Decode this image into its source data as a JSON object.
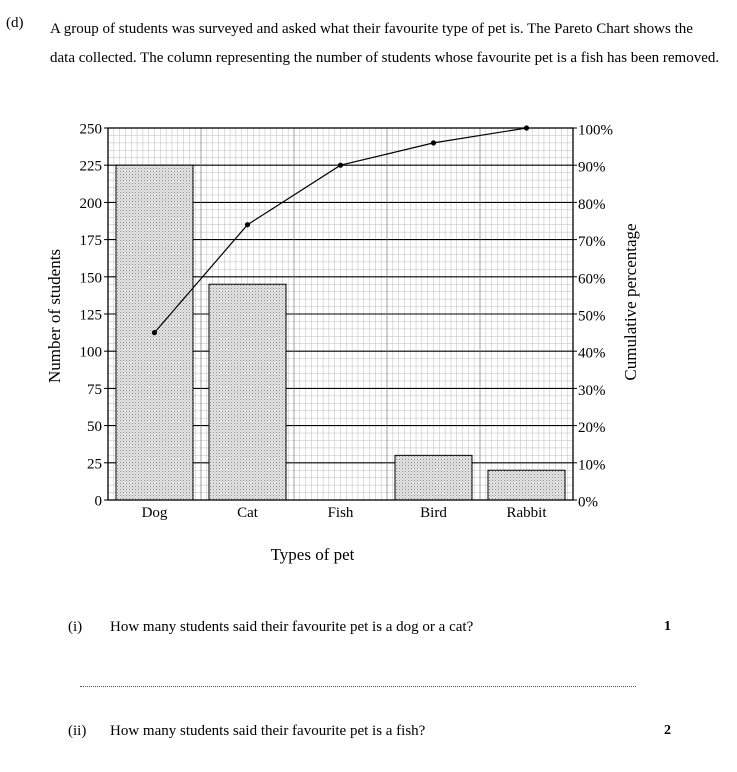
{
  "question": {
    "part_label": "(d)",
    "intro": "A group of students was surveyed and asked what their favourite type of pet is. The Pareto Chart shows the data collected. The column representing the number of students whose favourite pet is a fish has been removed.",
    "sub_questions": [
      {
        "label": "(i)",
        "text": "How many students said their favourite pet is a dog or a cat?",
        "marks": "1"
      },
      {
        "label": "(ii)",
        "text": "How many students said their favourite pet is a fish?",
        "marks": "2"
      }
    ]
  },
  "chart_data": {
    "type": "bar",
    "xlabel": "Types of pet",
    "ylabel": "Number of students",
    "y2label": "Cumulative percentage",
    "categories": [
      "Dog",
      "Cat",
      "Fish",
      "Bird",
      "Rabbit"
    ],
    "values": [
      225,
      145,
      null,
      30,
      20
    ],
    "ylim": [
      0,
      250
    ],
    "yticks": [
      0,
      25,
      50,
      75,
      100,
      125,
      150,
      175,
      200,
      225,
      250
    ],
    "y2lim": [
      0,
      100
    ],
    "y2ticks": [
      "0%",
      "10%",
      "20%",
      "30%",
      "40%",
      "50%",
      "60%",
      "70%",
      "80%",
      "90%",
      "100%"
    ],
    "cumulative_percent": [
      45,
      74,
      90,
      96,
      100
    ],
    "grid": true,
    "colors": {
      "bar_fill": "#d6d6d6",
      "bar_stroke": "#000000",
      "grid": "#000000",
      "line": "#000000"
    }
  }
}
